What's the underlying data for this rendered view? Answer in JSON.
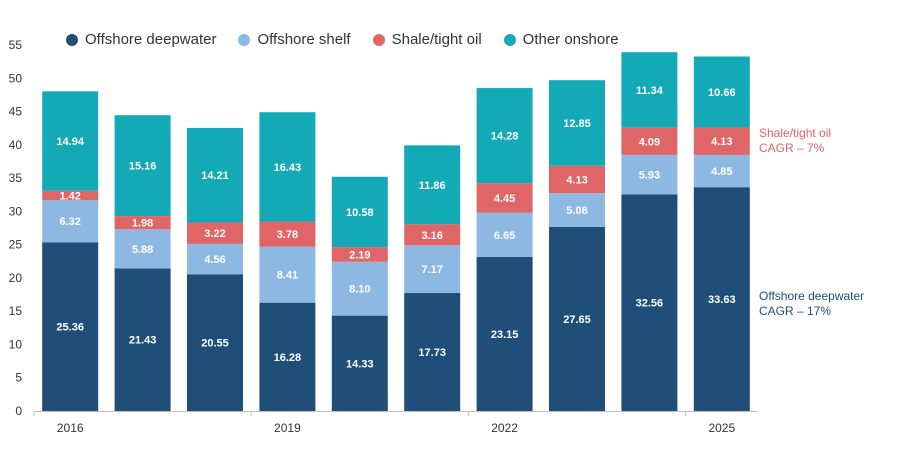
{
  "chart_data": {
    "type": "bar",
    "stacked": true,
    "x": [
      "2016",
      "",
      "",
      "2019",
      "",
      "",
      "2022",
      "",
      "",
      "2025"
    ],
    "xticks_labeled": [
      "2016",
      "2019",
      "2022",
      "2025"
    ],
    "ylim": [
      0,
      55
    ],
    "yticks": [
      0,
      5,
      10,
      15,
      20,
      25,
      30,
      35,
      40,
      45,
      50,
      55
    ],
    "grid": false,
    "legend_position": "top",
    "series": [
      {
        "name": "Offshore deepwater",
        "color": "#1f4e79",
        "values": [
          25.36,
          21.43,
          20.55,
          16.28,
          14.33,
          17.73,
          23.15,
          27.65,
          32.56,
          33.63
        ]
      },
      {
        "name": "Offshore shelf",
        "color": "#8db8e2",
        "values": [
          6.32,
          5.88,
          4.56,
          8.41,
          8.1,
          7.17,
          6.65,
          5.08,
          5.93,
          4.85
        ]
      },
      {
        "name": "Shale/tight oil",
        "color": "#e06566",
        "values": [
          1.42,
          1.98,
          3.22,
          3.78,
          2.19,
          3.16,
          4.45,
          4.13,
          4.09,
          4.13
        ]
      },
      {
        "name": "Other onshore",
        "color": "#14a9b6",
        "values": [
          14.94,
          15.16,
          14.21,
          16.43,
          10.58,
          11.86,
          14.28,
          12.85,
          11.34,
          10.66
        ]
      }
    ],
    "annotations": [
      {
        "series": "Shale/tight oil",
        "lines": [
          "Shale/tight oil",
          "CAGR – 7%"
        ],
        "color": "#e06566"
      },
      {
        "series": "Offshore deepwater",
        "lines": [
          "Offshore deepwater",
          "CAGR – 17%"
        ],
        "color": "#1f4e79"
      }
    ]
  }
}
